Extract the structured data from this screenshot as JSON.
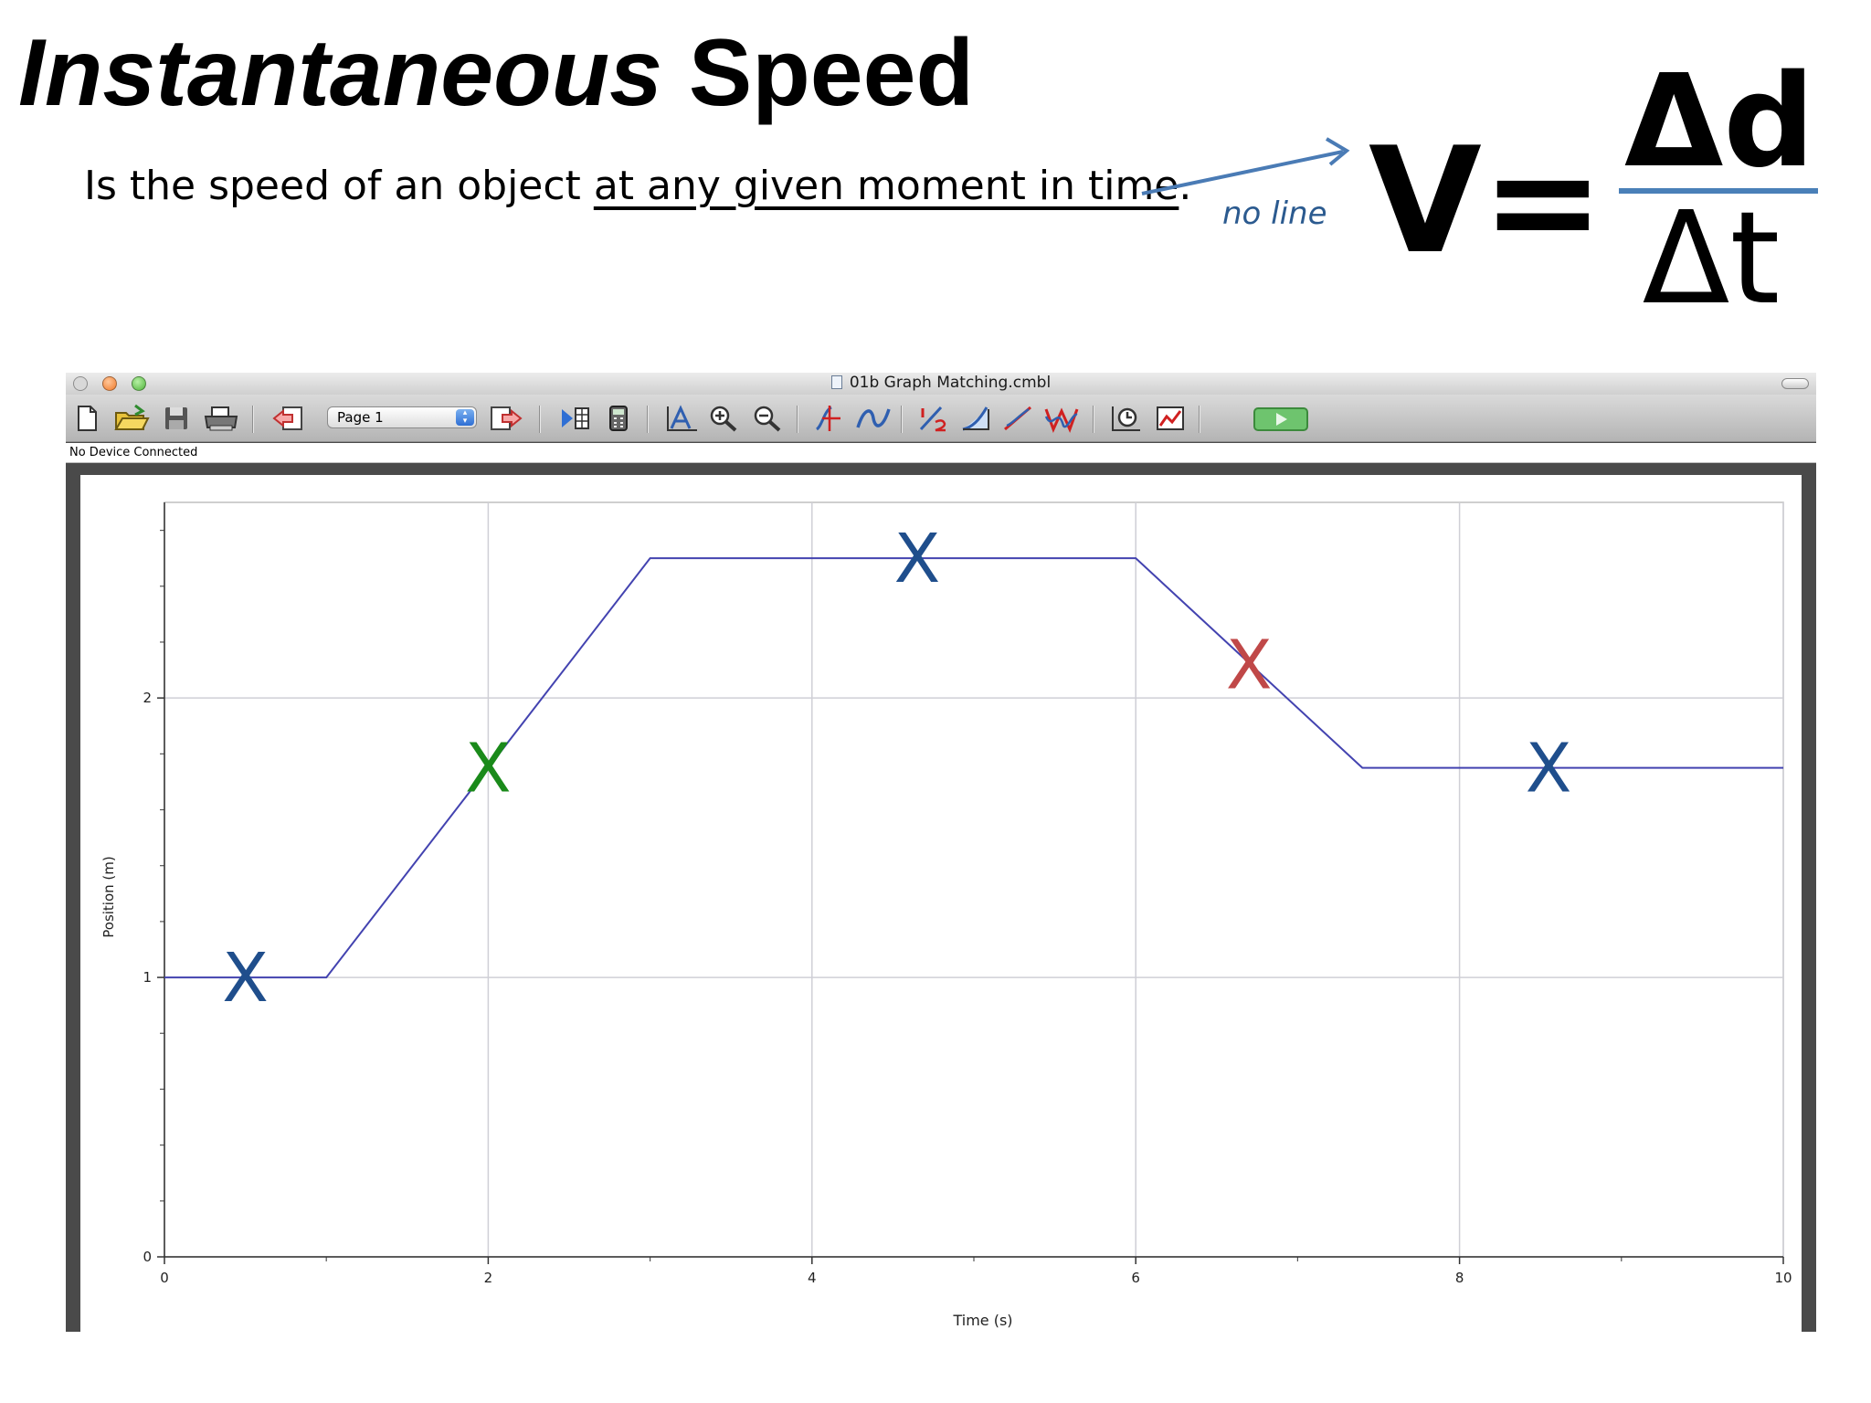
{
  "slide": {
    "title_italic": "Instantaneous",
    "title_rest": " Speed",
    "definition_prefix": "Is the speed of an object ",
    "definition_underlined": "at any given moment in time",
    "definition_suffix": ".",
    "arrow_note": "no line",
    "equation": {
      "lhs": "V=",
      "numerator": "Δd",
      "denominator": "Δt"
    },
    "colors": {
      "arrow": "#4a7bb5",
      "equation_bar": "#4a80b8",
      "note": "#2b5a8f"
    }
  },
  "window": {
    "title": "01b Graph Matching.cmbl",
    "status": "No Device Connected",
    "page_select": {
      "value": "Page 1"
    },
    "toolbar_icons": [
      "new-file-icon",
      "open-folder-icon",
      "save-icon",
      "print-icon",
      "previous-page-icon",
      "next-page-icon",
      "data-browser-icon",
      "calculator-icon",
      "autoscale-icon",
      "zoom-in-icon",
      "zoom-out-icon",
      "examine-icon",
      "interpolate-icon",
      "tangent-icon",
      "integral-icon",
      "linear-fit-icon",
      "curve-fit-icon",
      "timer-icon",
      "graph-options-icon",
      "collect-icon"
    ]
  },
  "chart_data": {
    "type": "line",
    "xlabel": "Time (s)",
    "ylabel": "Position (m)",
    "xlim": [
      0,
      10
    ],
    "ylim": [
      0,
      2.7
    ],
    "x_ticks": [
      "0",
      "2",
      "4",
      "6",
      "8",
      "10"
    ],
    "y_ticks": [
      "0",
      "1",
      "2"
    ],
    "grid": true,
    "series": [
      {
        "color": "#4343b0",
        "x": [
          0,
          1,
          3,
          6,
          7.4,
          10
        ],
        "y": [
          1,
          1,
          2.5,
          2.5,
          1.75,
          1.75
        ]
      }
    ],
    "annotations": [
      {
        "text": "X",
        "x": 0.5,
        "y": 1.0,
        "color": "#1f4e8c"
      },
      {
        "text": "X",
        "x": 2.0,
        "y": 1.75,
        "color": "#1a8a1a"
      },
      {
        "text": "X",
        "x": 4.65,
        "y": 2.5,
        "color": "#1f4e8c"
      },
      {
        "text": "X",
        "x": 6.7,
        "y": 2.12,
        "color": "#c04848"
      },
      {
        "text": "X",
        "x": 8.55,
        "y": 1.75,
        "color": "#1f4e8c"
      }
    ]
  }
}
